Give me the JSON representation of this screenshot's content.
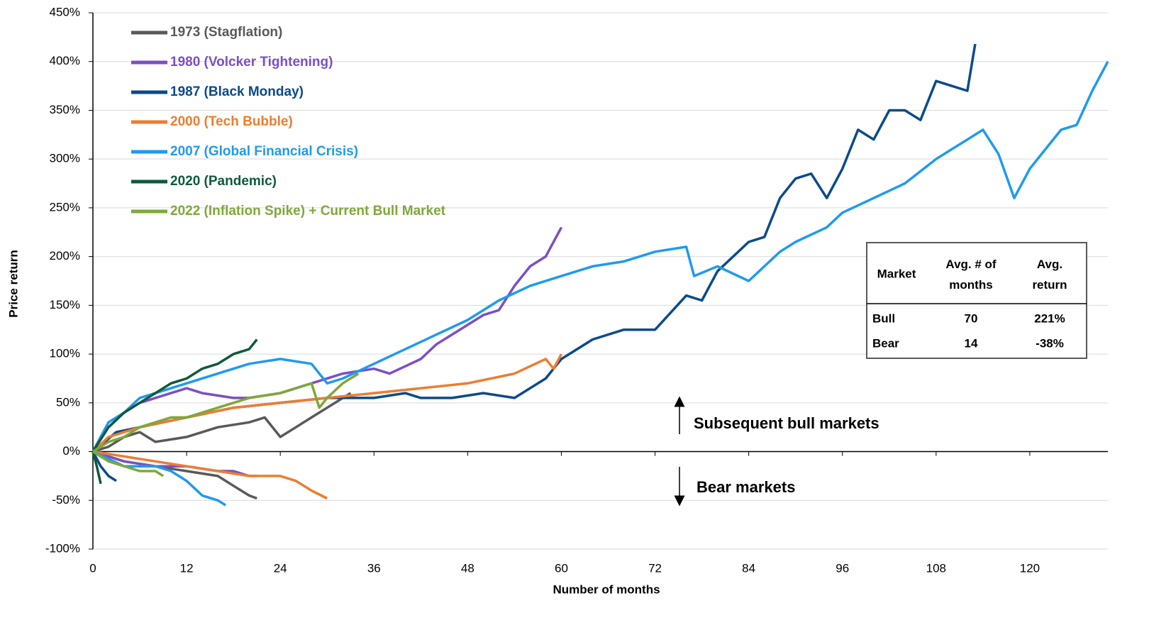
{
  "chart_data": {
    "type": "line",
    "xlabel": "Number of months",
    "ylabel": "Price return",
    "xlim": [
      0,
      130
    ],
    "xticks": [
      0,
      12,
      24,
      36,
      48,
      60,
      72,
      84,
      96,
      108,
      120
    ],
    "ylim": [
      -100,
      450
    ],
    "yticks": [
      {
        "value": -100,
        "label": "-100%"
      },
      {
        "value": -50,
        "label": "-50%"
      },
      {
        "value": 0,
        "label": "0%"
      },
      {
        "value": 50,
        "label": "50%"
      },
      {
        "value": 100,
        "label": "100%"
      },
      {
        "value": 150,
        "label": "150%"
      },
      {
        "value": 200,
        "label": "200%"
      },
      {
        "value": 250,
        "label": "250%"
      },
      {
        "value": 300,
        "label": "300%"
      },
      {
        "value": 350,
        "label": "350%"
      },
      {
        "value": 400,
        "label": "400%"
      },
      {
        "value": 450,
        "label": "450%"
      }
    ],
    "grid": true,
    "annotations": [
      "Subsequent bull markets",
      "Bear markets"
    ],
    "series": [
      {
        "name": "1973 (Stagflation)",
        "color": "#595959",
        "bull": {
          "x": [
            0,
            2,
            4,
            6,
            8,
            12,
            16,
            20,
            22,
            24,
            26,
            28,
            30,
            33
          ],
          "values": [
            0,
            5,
            15,
            20,
            10,
            15,
            25,
            30,
            35,
            15,
            25,
            35,
            45,
            60
          ]
        },
        "bear": {
          "x": [
            0,
            4,
            8,
            12,
            16,
            18,
            20,
            21
          ],
          "values": [
            0,
            -10,
            -15,
            -20,
            -25,
            -35,
            -45,
            -48
          ]
        }
      },
      {
        "name": "1980 (Volcker Tightening)",
        "color": "#7b4fc6",
        "bull": {
          "x": [
            0,
            2,
            4,
            6,
            8,
            10,
            12,
            14,
            18,
            20,
            24,
            28,
            32,
            36,
            38,
            42,
            44,
            48,
            50,
            52,
            54,
            56,
            58,
            60
          ],
          "values": [
            0,
            30,
            40,
            50,
            55,
            60,
            65,
            60,
            55,
            55,
            60,
            70,
            80,
            85,
            80,
            95,
            110,
            130,
            140,
            145,
            170,
            190,
            200,
            230
          ]
        },
        "bear": {
          "x": [
            0,
            4,
            8,
            12,
            16,
            18,
            20,
            21
          ],
          "values": [
            0,
            -10,
            -15,
            -15,
            -20,
            -20,
            -25,
            -25
          ]
        }
      },
      {
        "name": "1987 (Black Monday)",
        "color": "#0b4a8b",
        "bull": {
          "x": [
            0,
            3,
            6,
            12,
            18,
            24,
            30,
            36,
            40,
            42,
            46,
            50,
            54,
            58,
            60,
            64,
            68,
            72,
            76,
            78,
            80,
            84,
            86,
            88,
            90,
            92,
            94,
            96,
            98,
            100,
            102,
            104,
            106,
            108,
            110,
            112,
            113
          ],
          "values": [
            0,
            20,
            25,
            35,
            45,
            50,
            55,
            55,
            60,
            55,
            55,
            60,
            55,
            75,
            95,
            115,
            125,
            125,
            160,
            155,
            185,
            215,
            220,
            260,
            280,
            285,
            260,
            290,
            330,
            320,
            350,
            350,
            340,
            380,
            375,
            370,
            418
          ]
        },
        "bear": {
          "x": [
            0,
            1,
            2,
            3
          ],
          "values": [
            0,
            -15,
            -25,
            -30
          ]
        }
      },
      {
        "name": "2000 (Tech Bubble)",
        "color": "#ed7d31",
        "bull": {
          "x": [
            0,
            2,
            6,
            12,
            18,
            24,
            30,
            36,
            42,
            48,
            54,
            58,
            59,
            60
          ],
          "values": [
            0,
            15,
            25,
            35,
            45,
            50,
            55,
            60,
            65,
            70,
            80,
            95,
            85,
            100
          ]
        },
        "bear": {
          "x": [
            0,
            4,
            8,
            12,
            16,
            20,
            24,
            26,
            28,
            30
          ],
          "values": [
            0,
            -5,
            -10,
            -15,
            -20,
            -25,
            -25,
            -30,
            -40,
            -48
          ]
        }
      },
      {
        "name": "2007 (Global Financial Crisis)",
        "color": "#1f9aef",
        "bull": {
          "x": [
            0,
            2,
            4,
            6,
            10,
            12,
            16,
            20,
            24,
            28,
            30,
            32,
            36,
            40,
            44,
            48,
            52,
            56,
            60,
            64,
            68,
            72,
            76,
            77,
            80,
            84,
            86,
            88,
            90,
            94,
            96,
            100,
            104,
            108,
            110,
            112,
            114,
            116,
            118,
            120,
            124,
            126,
            128,
            130
          ],
          "values": [
            0,
            30,
            40,
            55,
            65,
            70,
            80,
            90,
            95,
            90,
            70,
            75,
            90,
            105,
            120,
            135,
            155,
            170,
            180,
            190,
            195,
            205,
            210,
            180,
            190,
            175,
            190,
            205,
            215,
            230,
            245,
            260,
            275,
            300,
            310,
            320,
            330,
            305,
            260,
            290,
            330,
            335,
            370,
            400
          ]
        },
        "bear": {
          "x": [
            0,
            4,
            8,
            10,
            12,
            14,
            16,
            17
          ],
          "values": [
            0,
            -15,
            -15,
            -20,
            -30,
            -45,
            -50,
            -55
          ]
        }
      },
      {
        "name": "2020 (Pandemic)",
        "color": "#0e5a3a",
        "bull": {
          "x": [
            0,
            2,
            4,
            6,
            8,
            10,
            12,
            14,
            16,
            18,
            20,
            21
          ],
          "values": [
            0,
            25,
            40,
            50,
            60,
            70,
            75,
            85,
            90,
            100,
            105,
            115
          ]
        },
        "bear": {
          "x": [
            0,
            0.5,
            1
          ],
          "values": [
            0,
            -15,
            -33
          ]
        }
      },
      {
        "name": "2022 (Inflation Spike) + Current Bull Market",
        "color": "#7fa83a",
        "bull": {
          "x": [
            0,
            2,
            4,
            6,
            8,
            10,
            12,
            16,
            20,
            24,
            26,
            28,
            29,
            30,
            32,
            34
          ],
          "values": [
            0,
            10,
            15,
            25,
            30,
            35,
            35,
            45,
            55,
            60,
            65,
            70,
            45,
            55,
            70,
            80
          ]
        },
        "bear": {
          "x": [
            0,
            2,
            4,
            6,
            8,
            9
          ],
          "values": [
            0,
            -10,
            -15,
            -20,
            -20,
            -25
          ]
        }
      }
    ],
    "table": {
      "header": [
        "Market",
        "Avg. # of months",
        "Avg. return"
      ],
      "rows": [
        [
          "Bull",
          "70",
          "221%"
        ],
        [
          "Bear",
          "14",
          "-38%"
        ]
      ]
    }
  }
}
